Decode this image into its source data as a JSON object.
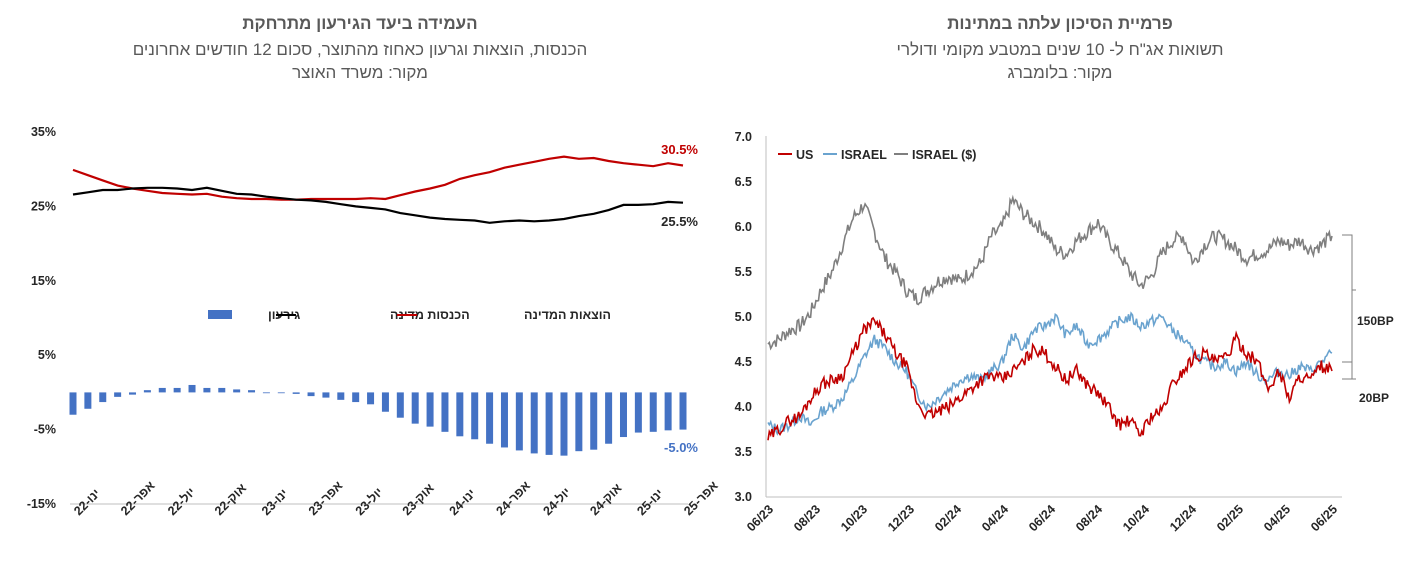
{
  "colors": {
    "red": "#c00000",
    "black": "#000000",
    "blue": "#4472c4",
    "lightblue": "#6aa3cf",
    "gray": "#7f7f7f",
    "axis": "#bfbfbf"
  },
  "left": {
    "title": "העמידה ביעד הגירעון מתרחקת",
    "subtitle": "הכנסות, הוצאות וגרעון כאחוז מהתוצר, סכום 12 חודשים אחרונים",
    "source": "מקור: משרד האוצר",
    "legend": {
      "deficit": "גירעון",
      "revenue": "הכנסות מדינה",
      "expenses": "הוצאות המדינה"
    }
  },
  "right": {
    "title": "פרמיית הסיכון עלתה במתינות",
    "subtitle": "תשואות אג\"ח ל- 10 שנים במטבע מקומי ודולרי",
    "source": "מקור: בלומברג",
    "legend": {
      "us": "US",
      "israel": "ISRAEL",
      "israel_usd": "ISRAEL ($)"
    },
    "annotations": {
      "upper": "150BP",
      "lower": "20BP"
    }
  },
  "chart_data": [
    {
      "type": "line",
      "title": "העמידה ביעד הגירעון מתרחקת",
      "x_tick_labels": [
        "ינו-22",
        "אפר-22",
        "יול-22",
        "אוק-22",
        "ינו-23",
        "אפר-23",
        "יול-23",
        "אוק-23",
        "ינו-24",
        "אפר-24",
        "יול-24",
        "אוק-24",
        "ינו-25",
        "אפר-25"
      ],
      "y_tick_labels": [
        "35%",
        "25%",
        "15%",
        "5%",
        "-5%",
        "-15%"
      ],
      "ylim": [
        -15,
        35
      ],
      "series": [
        {
          "name": "הוצאות המדינה",
          "color": "#c00000",
          "values": [
            29.9,
            29.2,
            28.5,
            27.8,
            27.4,
            27.1,
            26.8,
            26.7,
            26.6,
            26.7,
            26.3,
            26.1,
            26.0,
            26.0,
            25.9,
            25.9,
            26.0,
            26.0,
            26.0,
            26.0,
            26.1,
            26.0,
            26.5,
            27.0,
            27.4,
            27.9,
            28.7,
            29.2,
            29.6,
            30.2,
            30.6,
            31.0,
            31.4,
            31.7,
            31.4,
            31.5,
            31.1,
            30.8,
            30.6,
            30.4,
            30.8,
            30.5
          ],
          "end_label": "30.5%"
        },
        {
          "name": "הכנסות מדינה",
          "color": "#000000",
          "values": [
            26.6,
            26.9,
            27.2,
            27.2,
            27.4,
            27.5,
            27.5,
            27.4,
            27.2,
            27.5,
            27.1,
            26.7,
            26.6,
            26.3,
            26.1,
            25.9,
            25.8,
            25.6,
            25.3,
            25.0,
            24.8,
            24.6,
            24.1,
            23.8,
            23.5,
            23.3,
            23.2,
            23.1,
            22.8,
            23.0,
            23.1,
            23.0,
            23.1,
            23.3,
            23.7,
            24.0,
            24.5,
            25.2,
            25.2,
            25.3,
            25.6,
            25.5
          ],
          "end_label": "25.5%"
        },
        {
          "name": "גירעון",
          "type": "bar",
          "color": "#4472c4",
          "values": [
            -3.0,
            -2.2,
            -1.3,
            -0.6,
            -0.3,
            0.3,
            0.6,
            0.6,
            1.0,
            0.6,
            0.6,
            0.4,
            0.3,
            0.0,
            0.0,
            -0.2,
            -0.5,
            -0.7,
            -1.0,
            -1.3,
            -1.6,
            -2.6,
            -3.4,
            -4.2,
            -4.6,
            -5.3,
            -5.9,
            -6.3,
            -6.9,
            -7.4,
            -7.8,
            -8.2,
            -8.4,
            -8.5,
            -7.9,
            -7.7,
            -6.9,
            -6.0,
            -5.4,
            -5.3,
            -5.1,
            -5.0
          ],
          "end_label": "-5.0%"
        }
      ]
    },
    {
      "type": "line",
      "title": "פרמיית הסיכון עלתה במתינות",
      "x_tick_labels": [
        "06/23",
        "08/23",
        "10/23",
        "12/23",
        "02/24",
        "04/24",
        "06/24",
        "08/24",
        "10/24",
        "12/24",
        "02/25",
        "04/25",
        "06/25"
      ],
      "y_tick_labels": [
        "7.0",
        "6.5",
        "6.0",
        "5.5",
        "5.0",
        "4.5",
        "4.0",
        "3.5",
        "3.0"
      ],
      "ylim": [
        3.0,
        7.0
      ],
      "series": [
        {
          "name": "US",
          "color": "#c00000",
          "values": [
            3.65,
            3.75,
            3.85,
            3.9,
            4.1,
            4.25,
            4.3,
            4.35,
            4.6,
            4.85,
            4.95,
            4.8,
            4.6,
            4.45,
            4.05,
            3.9,
            3.95,
            4.0,
            4.1,
            4.2,
            4.3,
            4.35,
            4.3,
            4.4,
            4.5,
            4.65,
            4.6,
            4.45,
            4.3,
            4.4,
            4.25,
            4.15,
            4.0,
            3.8,
            3.85,
            3.7,
            3.9,
            3.95,
            4.25,
            4.4,
            4.55,
            4.6,
            4.5,
            4.55,
            4.75,
            4.6,
            4.5,
            4.2,
            4.4,
            4.1,
            4.35,
            4.3,
            4.45,
            4.4
          ]
        },
        {
          "name": "ISRAEL",
          "color": "#6aa3cf",
          "values": [
            3.8,
            3.75,
            3.8,
            3.9,
            3.8,
            3.95,
            4.0,
            4.1,
            4.3,
            4.55,
            4.75,
            4.65,
            4.5,
            4.4,
            4.15,
            4.0,
            4.1,
            4.2,
            4.3,
            4.35,
            4.3,
            4.4,
            4.5,
            4.8,
            4.65,
            4.85,
            4.9,
            5.0,
            4.8,
            4.9,
            4.7,
            4.75,
            4.85,
            4.95,
            5.0,
            4.9,
            4.95,
            5.0,
            4.85,
            4.75,
            4.6,
            4.5,
            4.45,
            4.5,
            4.4,
            4.5,
            4.35,
            4.3,
            4.4,
            4.35,
            4.45,
            4.4,
            4.5,
            4.6
          ]
        },
        {
          "name": "ISRAEL ($)",
          "color": "#7f7f7f",
          "values": [
            4.7,
            4.75,
            4.85,
            4.9,
            5.05,
            5.3,
            5.5,
            5.8,
            6.1,
            6.25,
            5.95,
            5.65,
            5.5,
            5.3,
            5.2,
            5.3,
            5.4,
            5.45,
            5.4,
            5.5,
            5.6,
            5.9,
            6.0,
            6.3,
            6.15,
            6.05,
            5.95,
            5.75,
            5.7,
            5.85,
            5.95,
            6.05,
            5.85,
            5.7,
            5.5,
            5.35,
            5.45,
            5.7,
            5.85,
            5.9,
            5.6,
            5.8,
            5.9,
            5.85,
            5.75,
            5.65,
            5.7,
            5.75,
            5.85,
            5.8,
            5.85,
            5.75,
            5.8,
            5.9
          ]
        }
      ],
      "annotations": [
        "150BP",
        "20BP"
      ]
    }
  ]
}
